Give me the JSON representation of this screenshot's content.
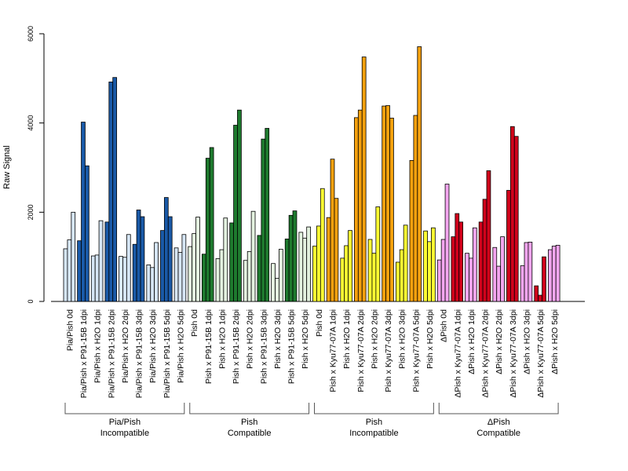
{
  "chart_data": {
    "type": "bar",
    "title": "",
    "xlabel": "",
    "ylabel": "Raw Signal",
    "ylim": [
      0,
      6000
    ],
    "yticks": [
      0,
      2000,
      4000,
      6000
    ],
    "grid": false,
    "bars_per_category": 3,
    "categories": [
      "Pia/Pish 0d",
      "Pia/Pish x P91-15B 1dpi",
      "Pia/Pish x H2O 1dpi",
      "Pia/Pish x P91-15B 2dpi",
      "Pia/Pish x H2O 2dpi",
      "Pia/Pish x P91-15B 3dpi",
      "Pia/Pish x H2O 3dpi",
      "Pia/Pish x P91-15B 5dpi",
      "Pia/Pish x H2O 5dpi",
      "Pish 0d",
      "Pish x P91-15B 1dpi",
      "Pish x H2O 1dpi",
      "Pish x P91-15B 2dpi",
      "Pish x H2O 2dpi",
      "Pish x P91-15B 3dpi",
      "Pish x H2O 3dpi",
      "Pish x P91-15B 5dpi",
      "Pish x H2O 5dpi",
      "Pish 0d",
      "Pish x Kyu77-07A 1dpi",
      "Pish x H2O 1dpi",
      "Pish x Kyu77-07A 2dpi",
      "Pish x H2O 2dpi",
      "Pish x Kyu77-07A 3dpi",
      "Pish x H2O 3dpi",
      "Pish x Kyu77-07A 5dpi",
      "Pish x H2O 5dpi",
      "ΔPish 0d",
      "ΔPish x Kyu77-07A 1dpi",
      "ΔPish x H2O 1dpi",
      "ΔPish x Kyu77-07A 2dpi",
      "ΔPish x H2O 2dpi",
      "ΔPish x Kyu77-07A 3dpi",
      "ΔPish x H2O 3dpi",
      "ΔPish x Kyu77-07A 5dpi",
      "ΔPish x H2O 5dpi"
    ],
    "values": [
      [
        1180,
        1380,
        2000
      ],
      [
        1360,
        4020,
        3040
      ],
      [
        1020,
        1040,
        1810
      ],
      [
        1780,
        4920,
        5020
      ],
      [
        1010,
        990,
        1500
      ],
      [
        1280,
        2050,
        1900
      ],
      [
        820,
        760,
        1320
      ],
      [
        1590,
        2330,
        1900
      ],
      [
        1200,
        1100,
        1500
      ],
      [
        1230,
        1520,
        1890
      ],
      [
        1060,
        3210,
        3450
      ],
      [
        960,
        1160,
        1870
      ],
      [
        1760,
        3950,
        4290
      ],
      [
        920,
        1120,
        2020
      ],
      [
        1480,
        3640,
        3880
      ],
      [
        850,
        520,
        1170
      ],
      [
        1400,
        1930,
        2030
      ],
      [
        1550,
        1420,
        1670
      ],
      [
        1240,
        1690,
        2530
      ],
      [
        1880,
        3190,
        2310
      ],
      [
        970,
        1250,
        1590
      ],
      [
        4120,
        4290,
        5480
      ],
      [
        1390,
        1080,
        2120
      ],
      [
        4380,
        4390,
        4110
      ],
      [
        880,
        1160,
        1710
      ],
      [
        3160,
        4170,
        5710
      ],
      [
        1580,
        1340,
        1650
      ],
      [
        930,
        1390,
        2630
      ],
      [
        1450,
        1970,
        1780
      ],
      [
        1080,
        970,
        1650
      ],
      [
        1780,
        2290,
        2930
      ],
      [
        1210,
        790,
        1450
      ],
      [
        2490,
        3920,
        3700
      ],
      [
        800,
        1320,
        1330
      ],
      [
        350,
        140,
        1000
      ],
      [
        1160,
        1240,
        1260
      ]
    ],
    "groups": [
      {
        "line1": "Pia/Pish",
        "line2": "Incompatible",
        "start": 0,
        "end": 8,
        "dark": "#1a5aa8",
        "light": "#d6e6f5"
      },
      {
        "line1": "Pish",
        "line2": "Compatible",
        "start": 9,
        "end": 17,
        "dark": "#1e7a2e",
        "light": "#e4f2e0"
      },
      {
        "line1": "Pish",
        "line2": "Incompatible",
        "start": 18,
        "end": 26,
        "dark": "#f5a10e",
        "light": "#ffff33"
      },
      {
        "line1": "ΔPish",
        "line2": "Compatible",
        "start": 27,
        "end": 35,
        "dark": "#d0021b",
        "light": "#f4a6f0"
      }
    ]
  }
}
